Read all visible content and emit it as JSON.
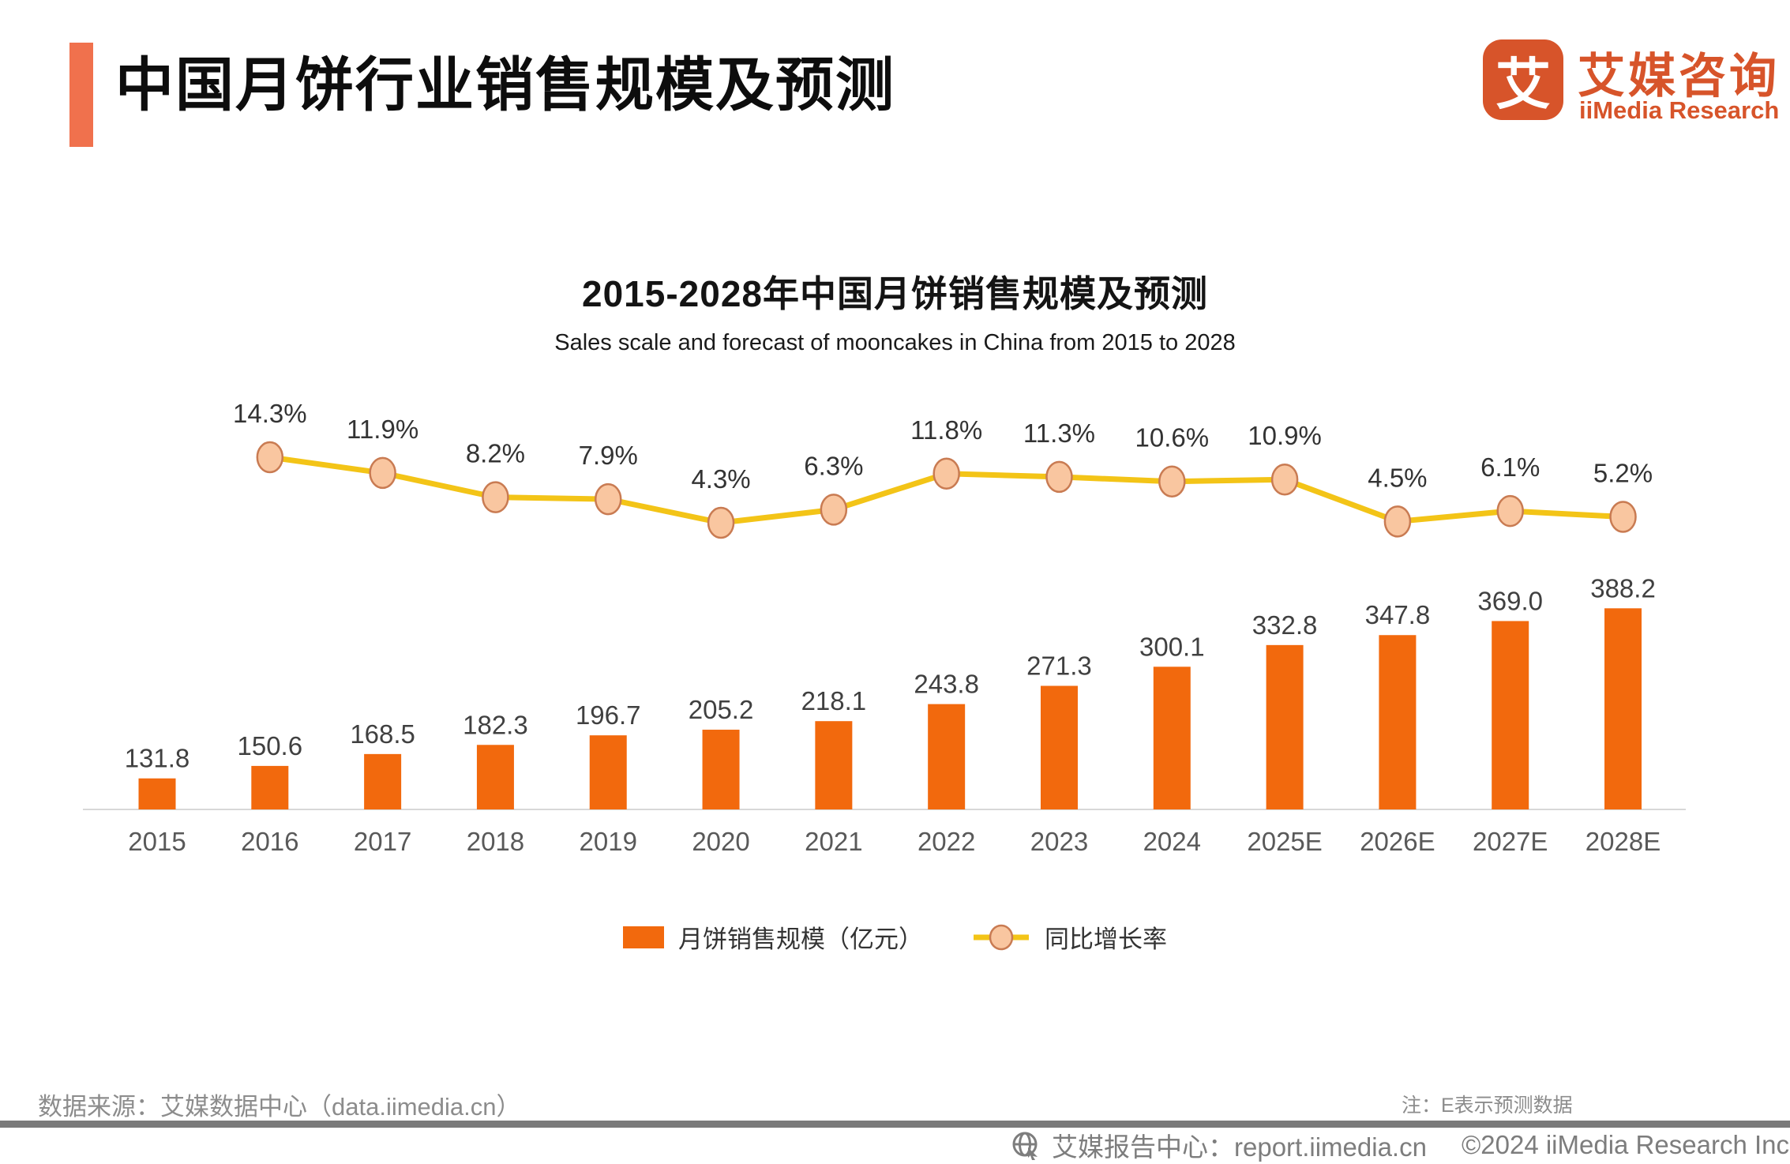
{
  "header": {
    "title": "中国月饼行业销售规模及预测"
  },
  "logo": {
    "mark": "艾",
    "name_cn": "艾媒咨询",
    "name_en": "iiMedia Research"
  },
  "chart": {
    "title": "2015-2028年中国月饼销售规模及预测",
    "subtitle": "Sales scale and forecast of mooncakes in China from 2015 to 2028",
    "legend": [
      {
        "label": "月饼销售规模（亿元）"
      },
      {
        "label": "同比增长率"
      }
    ]
  },
  "chart_data": {
    "type": "combo bar+line",
    "title": "2015-2028年中国月饼销售规模及预测",
    "subtitle": "Sales scale and forecast of mooncakes in China from 2015 to 2028",
    "categories": [
      "2015",
      "2016",
      "2017",
      "2018",
      "2019",
      "2020",
      "2021",
      "2022",
      "2023",
      "2024",
      "2025E",
      "2026E",
      "2027E",
      "2028E"
    ],
    "series": [
      {
        "name": "月饼销售规模（亿元）",
        "type": "bar",
        "unit": "亿元",
        "values": [
          131.8,
          150.6,
          168.5,
          182.3,
          196.7,
          205.2,
          218.1,
          243.8,
          271.3,
          300.1,
          332.8,
          347.8,
          369.0,
          388.2
        ],
        "labels": [
          "131.8",
          "150.6",
          "168.5",
          "182.3",
          "196.7",
          "205.2",
          "218.1",
          "243.8",
          "271.3",
          "300.1",
          "332.8",
          "347.8",
          "369.0",
          "388.2"
        ]
      },
      {
        "name": "同比增长率",
        "type": "line",
        "unit": "%",
        "x": [
          "2016",
          "2017",
          "2018",
          "2019",
          "2020",
          "2021",
          "2022",
          "2023",
          "2024",
          "2025E",
          "2026E",
          "2027E",
          "2028E"
        ],
        "values": [
          14.3,
          11.9,
          8.2,
          7.9,
          4.3,
          6.3,
          11.8,
          11.3,
          10.6,
          10.9,
          4.5,
          6.1,
          5.2
        ],
        "labels": [
          "14.3%",
          "11.9%",
          "8.2%",
          "7.9%",
          "4.3%",
          "6.3%",
          "11.8%",
          "11.3%",
          "10.6%",
          "10.9%",
          "4.5%",
          "6.1%",
          "5.2%"
        ]
      }
    ],
    "colors": {
      "bar": "#F2690D",
      "line": "#F3C417",
      "marker_fill": "#F9C6A0",
      "marker_stroke": "#C97B52"
    },
    "legend_position": "bottom",
    "grid": false
  },
  "footer": {
    "source": "数据来源：艾媒数据中心（data.iimedia.cn）",
    "note": "注：E表示预测数据",
    "report_line": "艾媒报告中心：report.iimedia.cn",
    "copyright": "©2024  iiMedia Research  Inc"
  }
}
